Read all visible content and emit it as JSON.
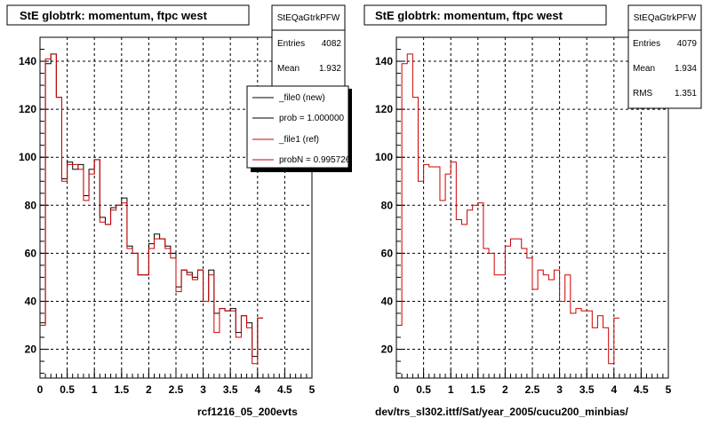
{
  "left_panel": {
    "title": "StE globtrk: momentum, ftpc west",
    "stats": {
      "name": "StEQaGtrkPFW",
      "rows": [
        {
          "label": "Entries",
          "value": "4082"
        },
        {
          "label": "Mean",
          "value": "1.932"
        }
      ]
    },
    "legend": [
      {
        "text": "_file0 (new)",
        "color": "#000000"
      },
      {
        "text": "prob = 1.000000",
        "color": "#000000"
      },
      {
        "text": "_file1 (ref)",
        "color": "#cc0000"
      },
      {
        "text": "probN = 0.995726",
        "color": "#cc0000"
      }
    ],
    "footer": "rcf1216_05_200evts"
  },
  "right_panel": {
    "title": "StE globtrk: momentum, ftpc west",
    "stats": {
      "name": "StEQaGtrkPFW",
      "rows": [
        {
          "label": "Entries",
          "value": "4079"
        },
        {
          "label": "Mean",
          "value": "1.934"
        },
        {
          "label": "RMS",
          "value": "1.351"
        }
      ]
    },
    "footer": "dev/trs_sl302.ittf/Sat/year_2005/cucu200_minbias/"
  },
  "colors": {
    "new": "#000000",
    "ref": "#cc0000",
    "grid": "#000000"
  },
  "chart_data": [
    {
      "type": "histogram",
      "title": "StE globtrk: momentum, ftpc west",
      "xlim": [
        0,
        5
      ],
      "ylim": [
        8,
        150
      ],
      "xticks": [
        "0",
        "0.5",
        "1",
        "1.5",
        "2",
        "2.5",
        "3",
        "3.5",
        "4",
        "4.5",
        "5"
      ],
      "yticks": [
        "20",
        "40",
        "60",
        "80",
        "100",
        "120",
        "140"
      ],
      "grid": true,
      "bin_width": 0.1,
      "series": [
        {
          "name": "_file0 (new)",
          "color": "#000000",
          "values": [
            31,
            139,
            143,
            125,
            91,
            98,
            95,
            97,
            84,
            95,
            99,
            75,
            72,
            79,
            80,
            83,
            63,
            60,
            51,
            51,
            64,
            68,
            66,
            63,
            60,
            46,
            53,
            52,
            50,
            53,
            40,
            53,
            35,
            37,
            36,
            37,
            27,
            34,
            31,
            17,
            33
          ]
        },
        {
          "name": "_file1 (ref)",
          "color": "#cc0000",
          "values": [
            30,
            141,
            143,
            125,
            90,
            97,
            97,
            95,
            82,
            93,
            99,
            73,
            72,
            78,
            80,
            81,
            62,
            60,
            51,
            51,
            62,
            66,
            66,
            62,
            58,
            44,
            53,
            51,
            49,
            53,
            40,
            51,
            27,
            37,
            36,
            36,
            25,
            34,
            29,
            14,
            33
          ]
        }
      ]
    },
    {
      "type": "histogram",
      "title": "StE globtrk: momentum, ftpc west",
      "xlim": [
        0,
        5
      ],
      "ylim": [
        8,
        150
      ],
      "xticks": [
        "0",
        "0.5",
        "1",
        "1.5",
        "2",
        "2.5",
        "3",
        "3.5",
        "4",
        "4.5",
        "5"
      ],
      "yticks": [
        "20",
        "40",
        "60",
        "80",
        "100",
        "120",
        "140"
      ],
      "grid": true,
      "bin_width": 0.1,
      "series": [
        {
          "name": "",
          "color": "#cc0000",
          "values": [
            30,
            139,
            143,
            125,
            90,
            97,
            96,
            96,
            82,
            93,
            98,
            74,
            72,
            78,
            80,
            81,
            62,
            60,
            51,
            51,
            63,
            66,
            66,
            62,
            58,
            45,
            53,
            51,
            49,
            53,
            40,
            51,
            35,
            37,
            36,
            36,
            29,
            34,
            29,
            14,
            33
          ]
        }
      ]
    }
  ]
}
